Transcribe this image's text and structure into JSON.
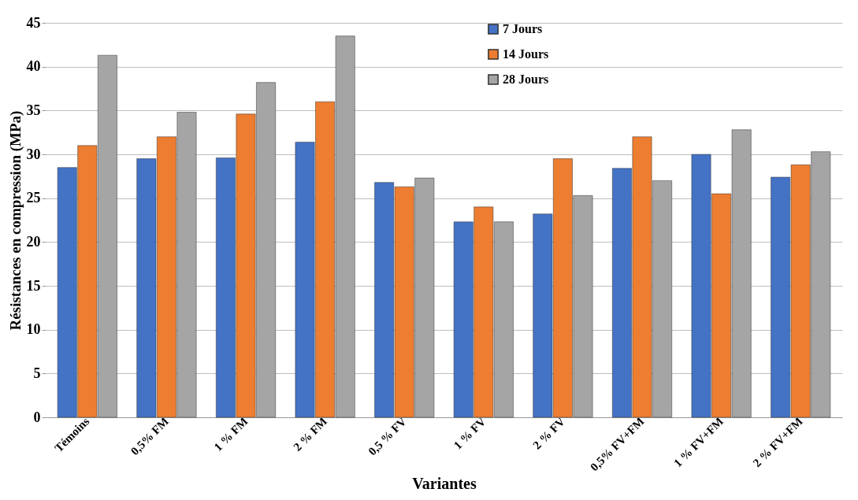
{
  "chart_data": {
    "type": "bar",
    "xlabel": "Variantes",
    "ylabel": "Résistances en compression (MPa)",
    "categories": [
      "Témoins",
      "0,5% FM",
      "1 % FM",
      "2 % FM",
      "0,5 % FV",
      "1 % FV",
      "2 % FV",
      "0,5% FV+FM",
      "1 % FV+FM",
      "2 % FV+FM"
    ],
    "series": [
      {
        "name": "7 Jours",
        "color": "#4472c4",
        "values": [
          28.5,
          29.5,
          29.6,
          31.4,
          26.8,
          22.3,
          23.2,
          28.4,
          30,
          27.4
        ]
      },
      {
        "name": "14 Jours",
        "color": "#ed7d31",
        "values": [
          31,
          32,
          34.6,
          36,
          26.3,
          24,
          29.5,
          32,
          25.5,
          28.8
        ]
      },
      {
        "name": "28 Jours",
        "color": "#a5a5a5",
        "values": [
          41.3,
          34.8,
          38.2,
          43.5,
          27.3,
          22.3,
          25.3,
          27,
          32.8,
          30.3
        ]
      }
    ],
    "ylim": [
      0,
      45
    ],
    "yticks": [
      0,
      5,
      10,
      15,
      20,
      25,
      30,
      35,
      40,
      45
    ],
    "grid": "y",
    "legend": "top"
  }
}
